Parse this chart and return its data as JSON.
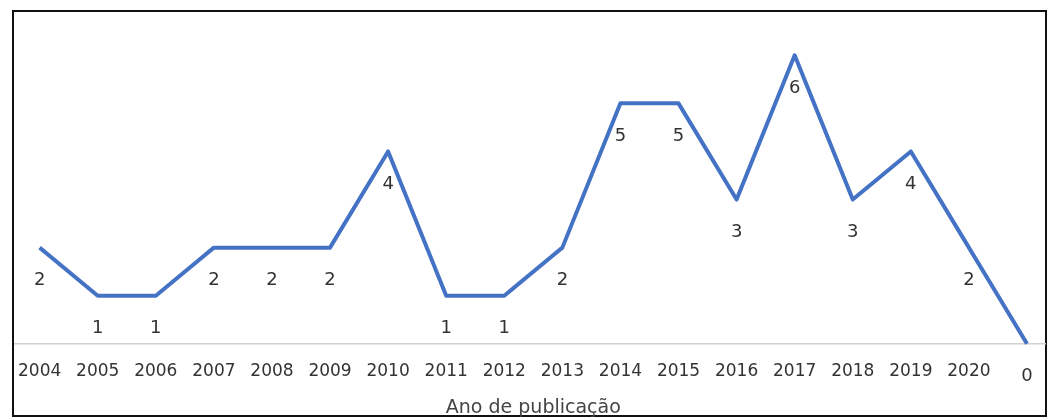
{
  "chart_data": {
    "type": "line",
    "xlabel": "Ano de publicação",
    "categories": [
      "2004",
      "2005",
      "2006",
      "2007",
      "2008",
      "2009",
      "2010",
      "2011",
      "2012",
      "2013",
      "2014",
      "2015",
      "2016",
      "2017",
      "2018",
      "2019",
      "2020",
      null
    ],
    "series": [
      {
        "color": "#4472c4",
        "values": [
          2,
          1,
          1,
          2,
          2,
          2,
          4,
          1,
          1,
          2,
          5,
          5,
          3,
          6,
          3,
          4,
          2,
          0
        ]
      }
    ],
    "data_labels": true,
    "tick_labels": "x",
    "grid": false,
    "legend": false,
    "marker": "none",
    "line_style": "solid"
  }
}
